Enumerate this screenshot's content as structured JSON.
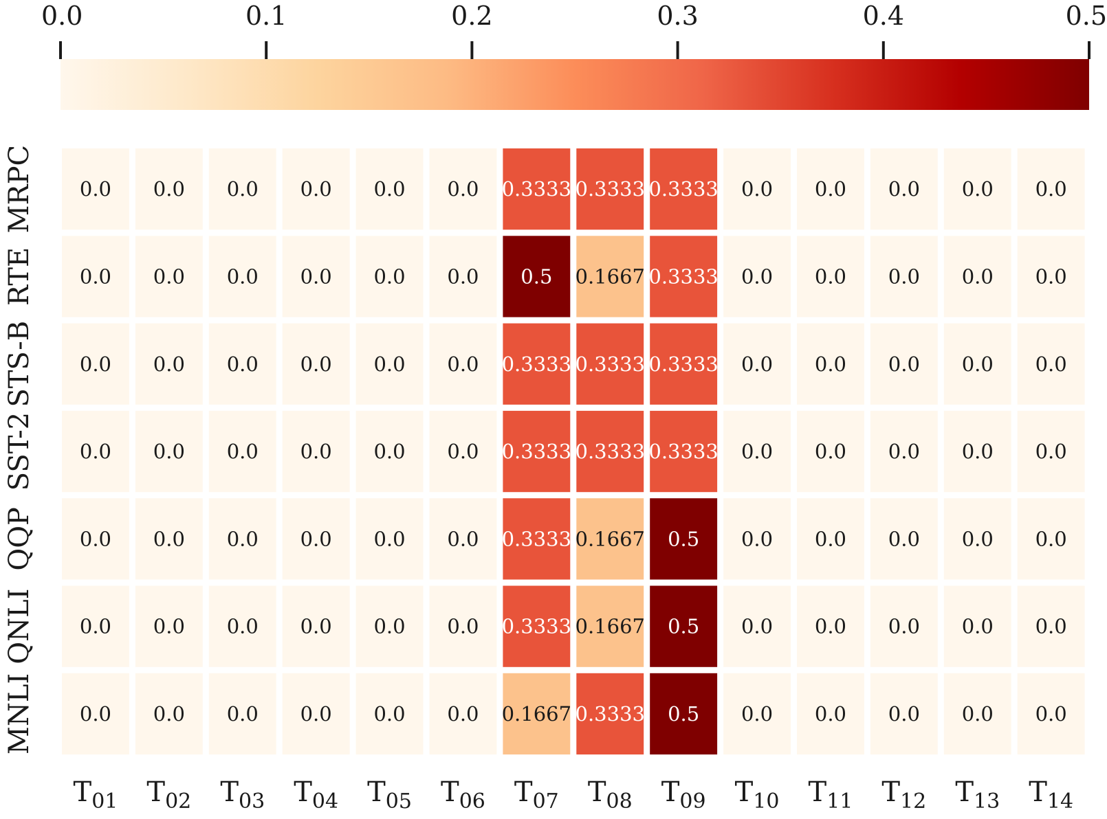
{
  "chart_data": {
    "type": "heatmap",
    "title": "",
    "xlabel": "",
    "ylabel": "",
    "colormap": "OrRd",
    "colorbar": {
      "position": "top",
      "range": [
        0.0,
        0.5
      ],
      "ticks": [
        "0.0",
        "0.1",
        "0.2",
        "0.3",
        "0.4",
        "0.5"
      ],
      "tick_values": [
        0.0,
        0.1,
        0.2,
        0.3,
        0.4,
        0.5
      ]
    },
    "rows": [
      "MRPC",
      "RTE",
      "STS-B",
      "SST-2",
      "QQP",
      "QNLI",
      "MNLI"
    ],
    "columns": [
      {
        "base": "T",
        "sub": "01"
      },
      {
        "base": "T",
        "sub": "02"
      },
      {
        "base": "T",
        "sub": "03"
      },
      {
        "base": "T",
        "sub": "04"
      },
      {
        "base": "T",
        "sub": "05"
      },
      {
        "base": "T",
        "sub": "06"
      },
      {
        "base": "T",
        "sub": "07"
      },
      {
        "base": "T",
        "sub": "08"
      },
      {
        "base": "T",
        "sub": "09"
      },
      {
        "base": "T",
        "sub": "10"
      },
      {
        "base": "T",
        "sub": "11"
      },
      {
        "base": "T",
        "sub": "12"
      },
      {
        "base": "T",
        "sub": "13"
      },
      {
        "base": "T",
        "sub": "14"
      }
    ],
    "values": [
      [
        0.0,
        0.0,
        0.0,
        0.0,
        0.0,
        0.0,
        0.3333,
        0.3333,
        0.3333,
        0.0,
        0.0,
        0.0,
        0.0,
        0.0
      ],
      [
        0.0,
        0.0,
        0.0,
        0.0,
        0.0,
        0.0,
        0.5,
        0.1667,
        0.3333,
        0.0,
        0.0,
        0.0,
        0.0,
        0.0
      ],
      [
        0.0,
        0.0,
        0.0,
        0.0,
        0.0,
        0.0,
        0.3333,
        0.3333,
        0.3333,
        0.0,
        0.0,
        0.0,
        0.0,
        0.0
      ],
      [
        0.0,
        0.0,
        0.0,
        0.0,
        0.0,
        0.0,
        0.3333,
        0.3333,
        0.3333,
        0.0,
        0.0,
        0.0,
        0.0,
        0.0
      ],
      [
        0.0,
        0.0,
        0.0,
        0.0,
        0.0,
        0.0,
        0.3333,
        0.1667,
        0.5,
        0.0,
        0.0,
        0.0,
        0.0,
        0.0
      ],
      [
        0.0,
        0.0,
        0.0,
        0.0,
        0.0,
        0.0,
        0.3333,
        0.1667,
        0.5,
        0.0,
        0.0,
        0.0,
        0.0,
        0.0
      ],
      [
        0.0,
        0.0,
        0.0,
        0.0,
        0.0,
        0.0,
        0.1667,
        0.3333,
        0.5,
        0.0,
        0.0,
        0.0,
        0.0,
        0.0
      ]
    ],
    "labels": [
      [
        "0.0",
        "0.0",
        "0.0",
        "0.0",
        "0.0",
        "0.0",
        "0.3333",
        "0.3333",
        "0.3333",
        "0.0",
        "0.0",
        "0.0",
        "0.0",
        "0.0"
      ],
      [
        "0.0",
        "0.0",
        "0.0",
        "0.0",
        "0.0",
        "0.0",
        "0.5",
        "0.1667",
        "0.3333",
        "0.0",
        "0.0",
        "0.0",
        "0.0",
        "0.0"
      ],
      [
        "0.0",
        "0.0",
        "0.0",
        "0.0",
        "0.0",
        "0.0",
        "0.3333",
        "0.3333",
        "0.3333",
        "0.0",
        "0.0",
        "0.0",
        "0.0",
        "0.0"
      ],
      [
        "0.0",
        "0.0",
        "0.0",
        "0.0",
        "0.0",
        "0.0",
        "0.3333",
        "0.3333",
        "0.3333",
        "0.0",
        "0.0",
        "0.0",
        "0.0",
        "0.0"
      ],
      [
        "0.0",
        "0.0",
        "0.0",
        "0.0",
        "0.0",
        "0.0",
        "0.3333",
        "0.1667",
        "0.5",
        "0.0",
        "0.0",
        "0.0",
        "0.0",
        "0.0"
      ],
      [
        "0.0",
        "0.0",
        "0.0",
        "0.0",
        "0.0",
        "0.0",
        "0.3333",
        "0.1667",
        "0.5",
        "0.0",
        "0.0",
        "0.0",
        "0.0",
        "0.0"
      ],
      [
        "0.0",
        "0.0",
        "0.0",
        "0.0",
        "0.0",
        "0.0",
        "0.1667",
        "0.3333",
        "0.5",
        "0.0",
        "0.0",
        "0.0",
        "0.0",
        "0.0"
      ]
    ],
    "grid": false,
    "legend": "none"
  },
  "colors": {
    "colorbar_stops": [
      "#fff7ec",
      "#fee8c8",
      "#fdd49e",
      "#fdbb84",
      "#fc8d59",
      "#ef6548",
      "#d7301f",
      "#b30000",
      "#7f0000"
    ],
    "cell_zero": "#fff7ec",
    "cell_low": "#fcc28c",
    "cell_mid": "#e8543a",
    "cell_high": "#7f0000",
    "text_dark": "#1a1a1a",
    "text_light": "#ffffff"
  }
}
